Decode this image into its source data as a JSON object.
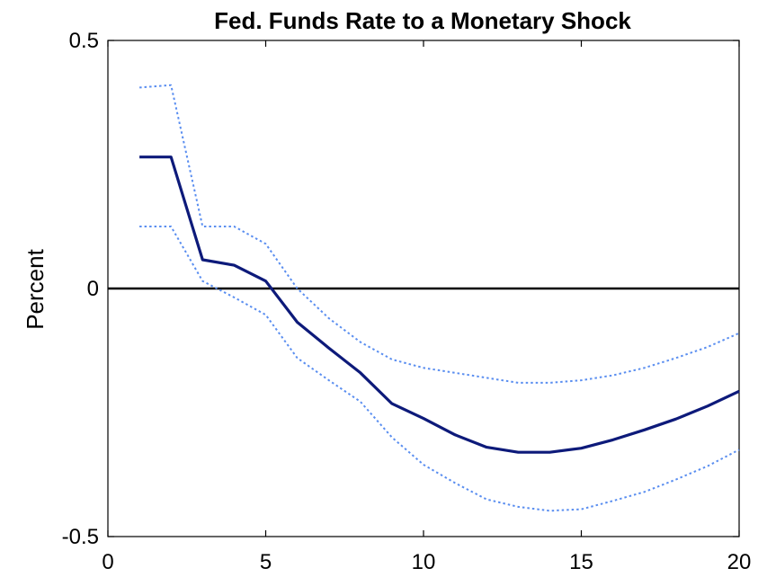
{
  "chart_data": {
    "type": "line",
    "title": "Fed. Funds Rate to a Monetary Shock",
    "xlabel": "",
    "ylabel": "Percent",
    "xlim": [
      0,
      20
    ],
    "ylim": [
      -0.5,
      0.5
    ],
    "x_ticks": [
      0,
      5,
      10,
      15,
      20
    ],
    "x_tick_labels": [
      "0",
      "5",
      "10",
      "15",
      "20"
    ],
    "y_ticks": [
      -0.5,
      0,
      0.5
    ],
    "y_tick_labels": [
      "-0.5",
      "0",
      "0.5"
    ],
    "grid": false,
    "zero_line": 0,
    "x": [
      1,
      2,
      3,
      4,
      5,
      6,
      7,
      8,
      9,
      10,
      11,
      12,
      13,
      14,
      15,
      16,
      17,
      18,
      19,
      20
    ],
    "series": [
      {
        "role": "estimate",
        "color": "#0d1a7a",
        "style": "solid",
        "values": [
          0.265,
          0.265,
          0.058,
          0.047,
          0.015,
          -0.068,
          -0.12,
          -0.17,
          -0.232,
          -0.262,
          -0.295,
          -0.32,
          -0.33,
          -0.33,
          -0.322,
          -0.305,
          -0.285,
          -0.263,
          -0.237,
          -0.207
        ]
      },
      {
        "role": "upper-band",
        "color": "#5a8ef0",
        "style": "dotted",
        "values": [
          0.405,
          0.41,
          0.125,
          0.125,
          0.09,
          0.0,
          -0.06,
          -0.108,
          -0.143,
          -0.16,
          -0.17,
          -0.18,
          -0.19,
          -0.19,
          -0.185,
          -0.175,
          -0.16,
          -0.14,
          -0.118,
          -0.09
        ]
      },
      {
        "role": "lower-band",
        "color": "#5a8ef0",
        "style": "dotted",
        "values": [
          0.125,
          0.125,
          0.015,
          -0.018,
          -0.053,
          -0.14,
          -0.185,
          -0.228,
          -0.3,
          -0.355,
          -0.392,
          -0.425,
          -0.44,
          -0.448,
          -0.445,
          -0.428,
          -0.41,
          -0.385,
          -0.358,
          -0.325
        ]
      }
    ]
  }
}
